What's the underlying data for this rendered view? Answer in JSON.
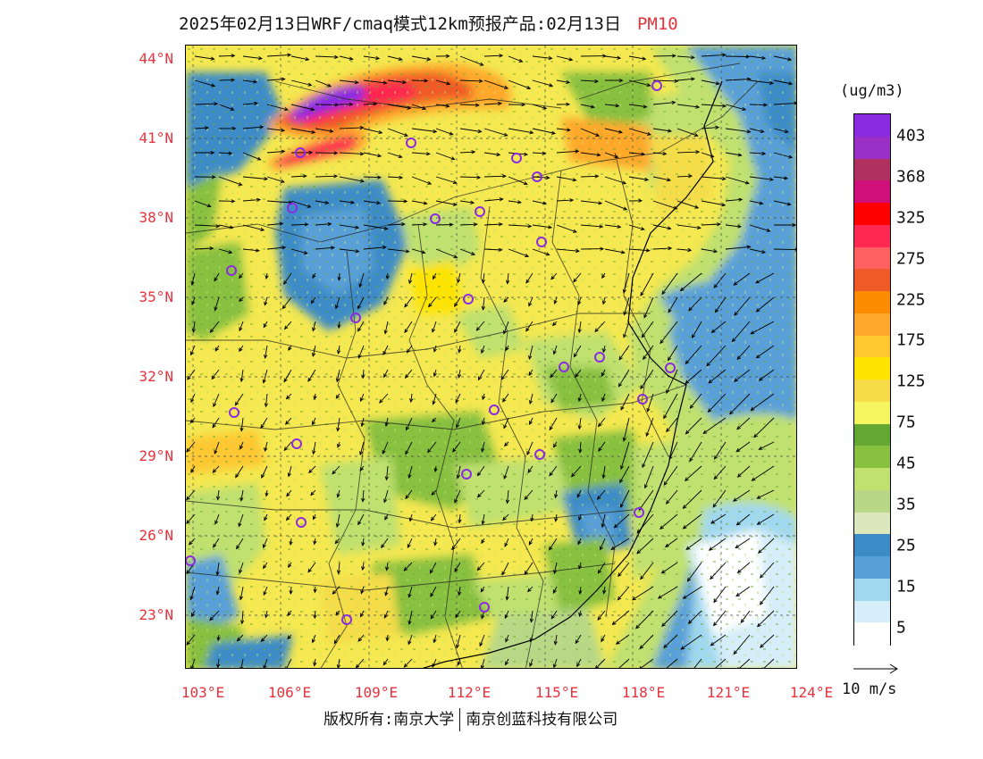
{
  "title": {
    "text": "2025年02月13日WRF/cmaq模式12km预报产品:02月13日",
    "variable": "PM10"
  },
  "unit": "(ug/m3)",
  "lat_labels": [
    "44°N",
    "41°N",
    "38°N",
    "35°N",
    "32°N",
    "29°N",
    "26°N",
    "23°N"
  ],
  "lon_labels": [
    "103°E",
    "106°E",
    "109°E",
    "112°E",
    "115°E",
    "118°E",
    "121°E",
    "124°E"
  ],
  "colorbar": {
    "labels": [
      "403",
      "368",
      "325",
      "275",
      "225",
      "175",
      "125",
      "75",
      "45",
      "35",
      "25",
      "15",
      "5"
    ],
    "colors": [
      "#8a2be2",
      "#9b30c8",
      "#b03060",
      "#d0107a",
      "#ff0000",
      "#ff2850",
      "#ff6060",
      "#f05a28",
      "#ff8c00",
      "#ffa82c",
      "#ffc830",
      "#ffe400",
      "#f5dc48",
      "#f5f560",
      "#64a832",
      "#88c040",
      "#c0e070",
      "#b8d888",
      "#dce8bc",
      "#3c8cc8",
      "#5aa0d8",
      "#a0d8f0",
      "#d6eefa",
      "#ffffff"
    ]
  },
  "wind_label": "10 m/s",
  "footer": {
    "left": "版权所有:南京大学",
    "right": "南京创蓝科技有限公司"
  }
}
